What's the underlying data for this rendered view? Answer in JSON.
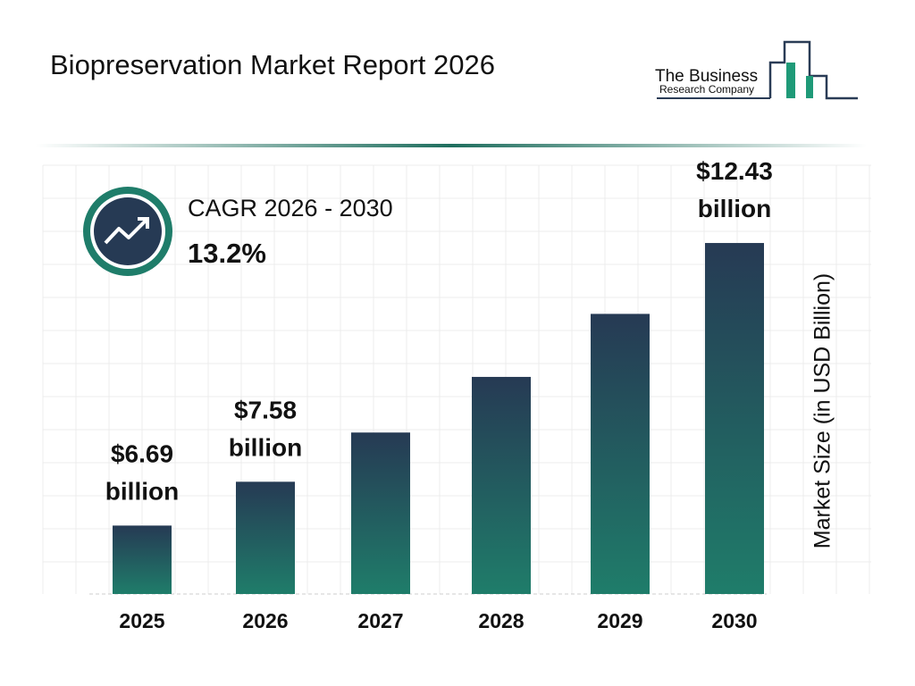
{
  "header": {
    "title": "Biopreservation Market Report 2026",
    "logo_line1": "The Business",
    "logo_line2": "Research Company"
  },
  "cagr": {
    "label": "CAGR 2026 - 2030",
    "value": "13.2%"
  },
  "chart_data": {
    "type": "bar",
    "y_label": "Market Size (in USD Billion)",
    "categories": [
      "2025",
      "2026",
      "2027",
      "2028",
      "2029",
      "2030"
    ],
    "values": [
      6.69,
      7.58,
      8.58,
      9.71,
      10.99,
      12.43
    ],
    "value_labels": [
      "$6.69 billion",
      "$7.58 billion",
      null,
      null,
      null,
      "$12.43 billion"
    ],
    "color_top": "#263a54",
    "color_bottom": "#1f7d6a",
    "ylim": [
      5.3,
      12.83
    ],
    "grid": true
  }
}
